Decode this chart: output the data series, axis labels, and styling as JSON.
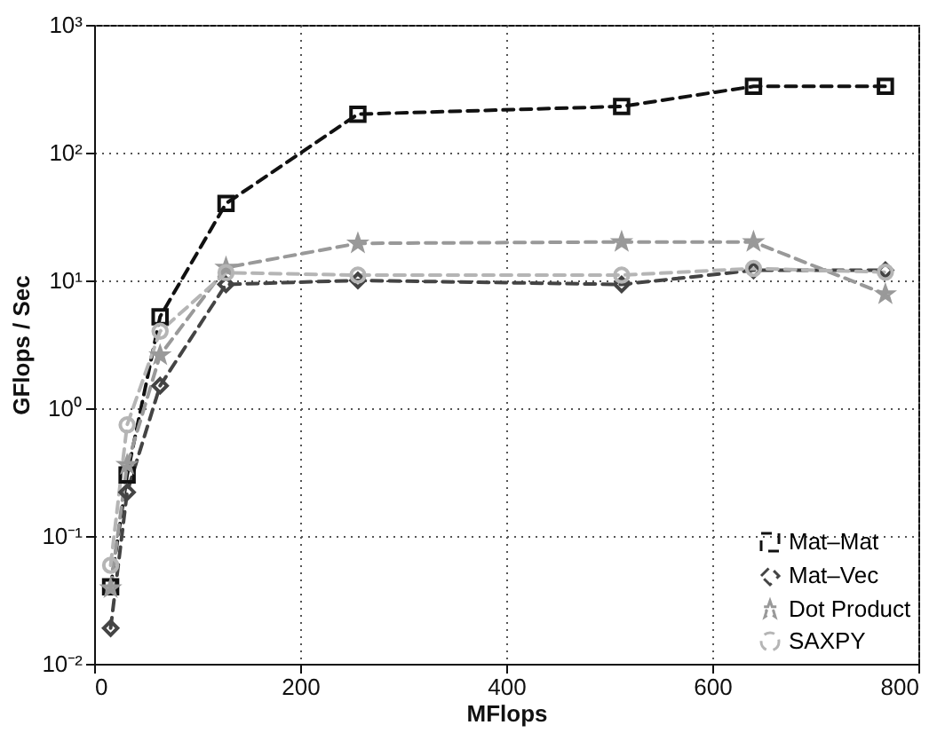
{
  "chart_data": {
    "type": "line",
    "xlabel": "MFlops",
    "ylabel": "GFlops / Sec",
    "x": [
      16,
      32,
      64,
      128,
      256,
      512,
      640,
      768
    ],
    "series": [
      {
        "name": "Mat–Mat",
        "color": "#111111",
        "marker": "square",
        "values": [
          0.04,
          0.3,
          5.2,
          40,
          200,
          230,
          330,
          330
        ]
      },
      {
        "name": "Mat–Vec",
        "color": "#444444",
        "marker": "diamond",
        "values": [
          0.019,
          0.22,
          1.5,
          9.3,
          10,
          9.3,
          12,
          12
        ]
      },
      {
        "name": "Dot Product",
        "color": "#999999",
        "marker": "star",
        "values": [
          0.039,
          0.36,
          2.6,
          12.6,
          19.5,
          20,
          20,
          7.8
        ]
      },
      {
        "name": "SAXPY",
        "color": "#b5b5b5",
        "marker": "circle",
        "values": [
          0.059,
          0.74,
          4,
          11.5,
          11,
          11,
          12.4,
          11.6
        ]
      }
    ],
    "xlim": [
      0,
      800
    ],
    "xticks": [
      0,
      200,
      400,
      600,
      800
    ],
    "ylim": [
      0.01,
      1000
    ],
    "yticks": [
      {
        "value": 0.01,
        "label": "10⁻²"
      },
      {
        "value": 0.1,
        "label": "10⁻¹"
      },
      {
        "value": 1,
        "label": "10⁰"
      },
      {
        "value": 10,
        "label": "10¹"
      },
      {
        "value": 100,
        "label": "10²"
      },
      {
        "value": 1000,
        "label": "10³"
      }
    ],
    "log": true,
    "grid": true,
    "legend": "bottom right",
    "line_style": "dashed"
  }
}
